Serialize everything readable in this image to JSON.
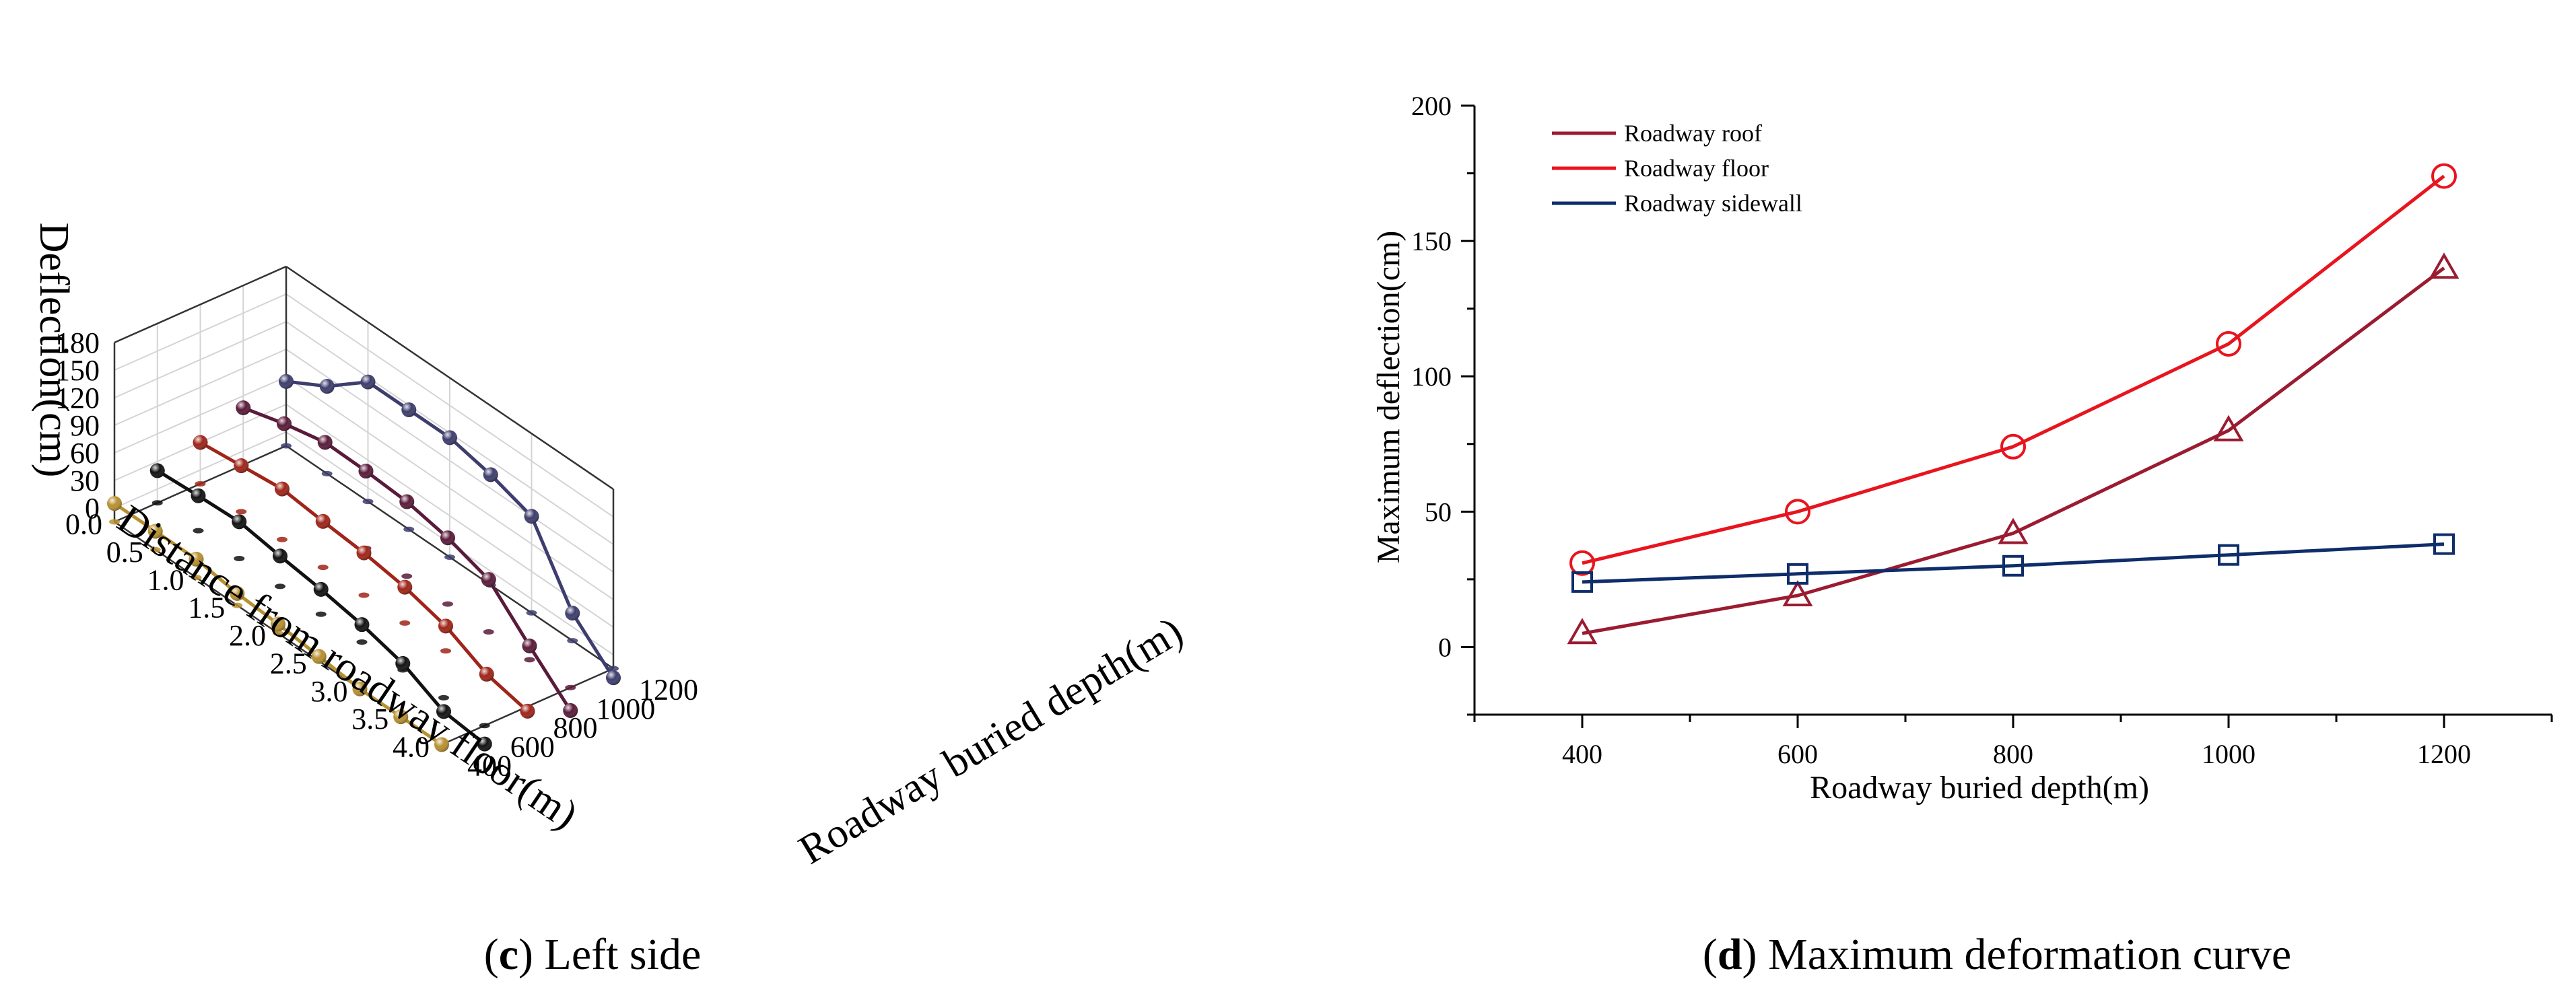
{
  "chart_data": [
    {
      "id": "c",
      "type": "line3d",
      "caption": {
        "letter": "c",
        "text": "Left side"
      },
      "zlabel": "Deflection(cm)",
      "xlabel": "Distance from roadway floor(m)",
      "ylabel": "Roadway buried depth(m)",
      "zlim": [
        -15,
        180
      ],
      "z_ticks": [
        "0",
        "30",
        "60",
        "90",
        "120",
        "150",
        "180"
      ],
      "x_ticks": [
        "0.0",
        "0.5",
        "1.0",
        "1.5",
        "2.0",
        "2.5",
        "3.0",
        "3.5",
        "4.0"
      ],
      "depth_ticks": [
        "400",
        "600",
        "800",
        "1000",
        "1200"
      ],
      "x": [
        0.0,
        0.5,
        1.0,
        1.5,
        2.0,
        2.5,
        3.0,
        3.5,
        4.0
      ],
      "series": [
        {
          "name": "400",
          "color": "#b8902f",
          "values": [
            5,
            5,
            5,
            -2,
            -5,
            -10,
            -15,
            -15,
            -15
          ]
        },
        {
          "name": "600",
          "color": "#111111",
          "values": [
            20,
            23,
            25,
            18,
            12,
            4,
            -8,
            -30,
            -35
          ]
        },
        {
          "name": "800",
          "color": "#a02418",
          "values": [
            30,
            35,
            40,
            35,
            31,
            24,
            12,
            -10,
            -20
          ]
        },
        {
          "name": "1000",
          "color": "#5a1a3a",
          "values": [
            47,
            60,
            70,
            69,
            66,
            57,
            42,
            0,
            -40
          ]
        },
        {
          "name": "1200",
          "color": "#3d3d6e",
          "values": [
            55,
            80,
            115,
            115,
            115,
            105,
            90,
            15,
            -25
          ]
        }
      ]
    },
    {
      "id": "d",
      "type": "line",
      "caption": {
        "letter": "d",
        "text": "Maximum deformation curve"
      },
      "xlabel": "Roadway buried depth(m)",
      "ylabel": "Maximum deflection(cm)",
      "xlim": [
        300,
        1300
      ],
      "ylim": [
        -25,
        200
      ],
      "x_ticks": [
        "400",
        "600",
        "800",
        "1000",
        "1200"
      ],
      "y_ticks": [
        "0",
        "50",
        "100",
        "150",
        "200"
      ],
      "x": [
        400,
        600,
        800,
        1000,
        1200
      ],
      "legend_position": "top-left",
      "series": [
        {
          "name": "Roadway roof",
          "color": "#9b1b30",
          "marker": "triangle",
          "values": [
            5,
            19,
            42,
            80,
            140
          ]
        },
        {
          "name": "Roadway floor",
          "color": "#e8141e",
          "marker": "circle",
          "values": [
            31,
            50,
            74,
            112,
            174
          ]
        },
        {
          "name": "Roadway sidewall",
          "color": "#0f2d6b",
          "marker": "square",
          "values": [
            24,
            27,
            30,
            34,
            38
          ]
        }
      ]
    }
  ]
}
